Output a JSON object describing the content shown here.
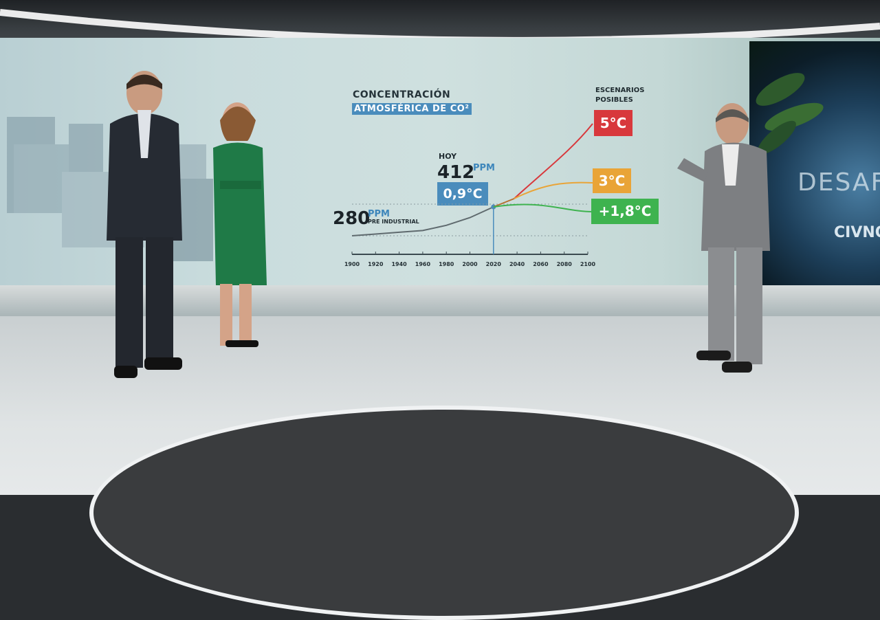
{
  "scene": {
    "studio_logo_text": "CIVNO",
    "studio_bg_word": "DESAF"
  },
  "chart_data": {
    "type": "line",
    "title": "CONCENTRACIÓN",
    "subtitle": "ATMOSFÉRICA DE CO²",
    "x_ticks": [
      1900,
      1920,
      1940,
      1960,
      1980,
      2000,
      2020,
      2040,
      2060,
      2080,
      2100
    ],
    "xlim": [
      1900,
      2100
    ],
    "historical": {
      "x": [
        1900,
        1920,
        1940,
        1960,
        1980,
        2000,
        2020
      ],
      "ppm": [
        296,
        303,
        310,
        317,
        338,
        369,
        412
      ]
    },
    "preindustrial": {
      "value": "280",
      "unit": "PPM",
      "label": "PRE INDUSTRIAL"
    },
    "today": {
      "label": "HOY",
      "value": "412",
      "unit": "PPM",
      "temp": "0,9°C",
      "year": 2020
    },
    "scenarios_title": "ESCENARIOS POSIBLES",
    "scenarios": [
      {
        "label": "5°C",
        "color": "#d8383c"
      },
      {
        "label": "3°C",
        "color": "#e9a437"
      },
      {
        "label": "+1,8°C",
        "color": "#3eb34f"
      }
    ]
  }
}
